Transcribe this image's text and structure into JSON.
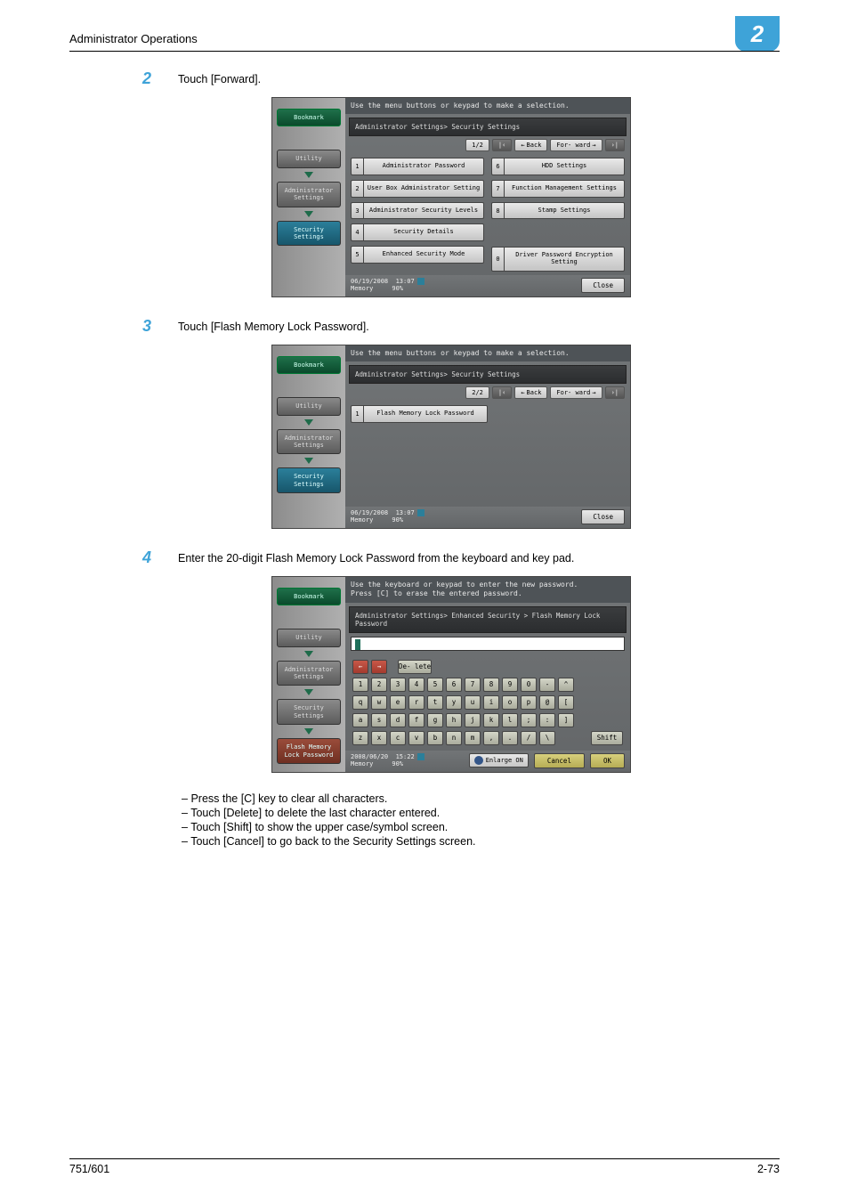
{
  "chapter_badge": "2",
  "header_title": "Administrator Operations",
  "footer_left": "751/601",
  "footer_right": "2-73",
  "steps": {
    "s2": {
      "num": "2",
      "text": "Touch [Forward]."
    },
    "s3": {
      "num": "3",
      "text": "Touch [Flash Memory Lock Password]."
    },
    "s4": {
      "num": "4",
      "text": "Enter the 20-digit Flash Memory Lock Password from the keyboard and key pad."
    }
  },
  "bullets": {
    "b1": "Press the [C] key to clear all characters.",
    "b2": "Touch [Delete] to delete the last character entered.",
    "b3": "Touch [Shift] to show the upper case/symbol screen.",
    "b4": "Touch [Cancel] to go back to the Security Settings screen."
  },
  "shot_common": {
    "side_bookmark": "Bookmark",
    "side_utility": "Utility",
    "side_admin": "Administrator Settings",
    "side_security": "Security Settings",
    "side_flash": "Flash Memory Lock Password",
    "close": "Close",
    "back": "Back",
    "forward_lbl": "For- ward",
    "mem_pct": "90%",
    "mem_lbl": "Memory"
  },
  "shot1": {
    "instr": "Use the menu buttons or keypad to make a selection.",
    "crumb": "Administrator Settings> Security Settings",
    "page": "1/2",
    "date": "06/19/2008",
    "time": "13:07",
    "left_items": [
      {
        "n": "1",
        "l": "Administrator Password"
      },
      {
        "n": "2",
        "l": "User Box Administrator Setting"
      },
      {
        "n": "3",
        "l": "Administrator Security Levels"
      },
      {
        "n": "4",
        "l": "Security Details"
      },
      {
        "n": "5",
        "l": "Enhanced Security Mode"
      }
    ],
    "right_items": [
      {
        "n": "6",
        "l": "HDD Settings"
      },
      {
        "n": "7",
        "l": "Function Management Settings"
      },
      {
        "n": "8",
        "l": "Stamp Settings"
      },
      {
        "n": "0",
        "l": "Driver Password Encryption Setting"
      }
    ]
  },
  "shot2": {
    "instr": "Use the menu buttons or keypad to make a selection.",
    "crumb": "Administrator Settings> Security Settings",
    "page": "2/2",
    "date": "06/19/2008",
    "time": "13:07",
    "item": {
      "n": "1",
      "l": "Flash Memory Lock Password"
    }
  },
  "shot3": {
    "instr1": "Use the keyboard or keypad to enter the new password.",
    "instr2": "Press [C] to erase the entered password.",
    "crumb": "Administrator Settings> Enhanced Security > Flash Memory Lock Password",
    "date": "2008/06/20",
    "time": "15:22",
    "delete": "De- lete",
    "shift": "Shift",
    "enlarge": "Enlarge ON",
    "cancel": "Cancel",
    "ok": "OK",
    "row_top": [
      "←",
      "→"
    ],
    "row1": [
      "1",
      "2",
      "3",
      "4",
      "5",
      "6",
      "7",
      "8",
      "9",
      "0",
      "-",
      "^"
    ],
    "row2": [
      "q",
      "w",
      "e",
      "r",
      "t",
      "y",
      "u",
      "i",
      "o",
      "p",
      "@",
      "["
    ],
    "row3": [
      "a",
      "s",
      "d",
      "f",
      "g",
      "h",
      "j",
      "k",
      "l",
      ";",
      ":",
      "]"
    ],
    "row4": [
      "z",
      "x",
      "c",
      "v",
      "b",
      "n",
      "m",
      ",",
      ".",
      "/",
      "\\"
    ]
  }
}
